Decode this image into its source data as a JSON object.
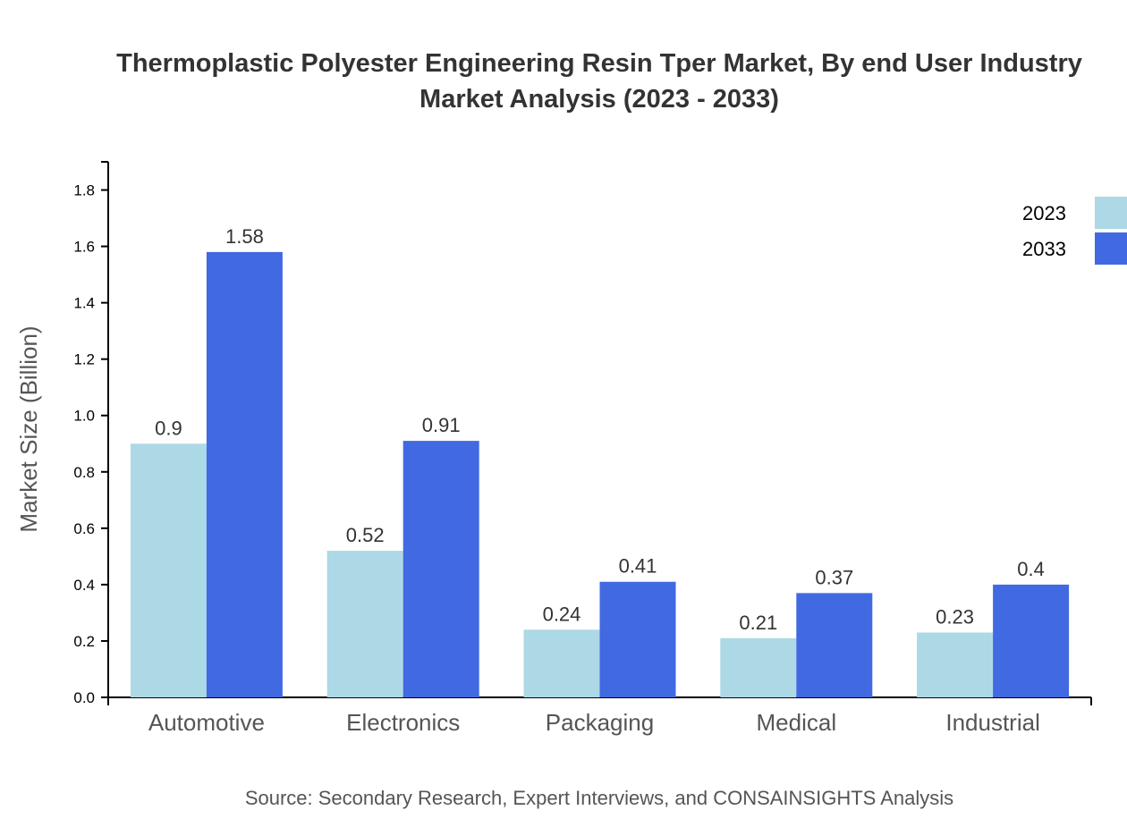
{
  "chart_data": {
    "type": "bar",
    "title_lines": [
      "Thermoplastic Polyester Engineering Resin Tper Market, By end User Industry",
      "Market Analysis (2023 - 2033)"
    ],
    "xlabel": "",
    "ylabel": "Market Size (Billion)",
    "ylim": [
      0,
      1.9
    ],
    "yticks": [
      "0.0",
      "0.2",
      "0.4",
      "0.6",
      "0.8",
      "1.0",
      "1.2",
      "1.4",
      "1.6",
      "1.8"
    ],
    "categories": [
      "Automotive",
      "Electronics",
      "Packaging",
      "Medical",
      "Industrial"
    ],
    "series": [
      {
        "name": "2023",
        "color": "#add8e6",
        "values": [
          0.9,
          0.52,
          0.24,
          0.21,
          0.23
        ],
        "labels": [
          "0.9",
          "0.52",
          "0.24",
          "0.21",
          "0.23"
        ]
      },
      {
        "name": "2033",
        "color": "#4169e1",
        "values": [
          1.58,
          0.91,
          0.41,
          0.37,
          0.4
        ],
        "labels": [
          "1.58",
          "0.91",
          "0.41",
          "0.37",
          "0.4"
        ]
      }
    ],
    "legend_position": "top-right",
    "grid": false,
    "source": "Source: Secondary Research, Expert Interviews, and CONSAINSIGHTS Analysis"
  }
}
